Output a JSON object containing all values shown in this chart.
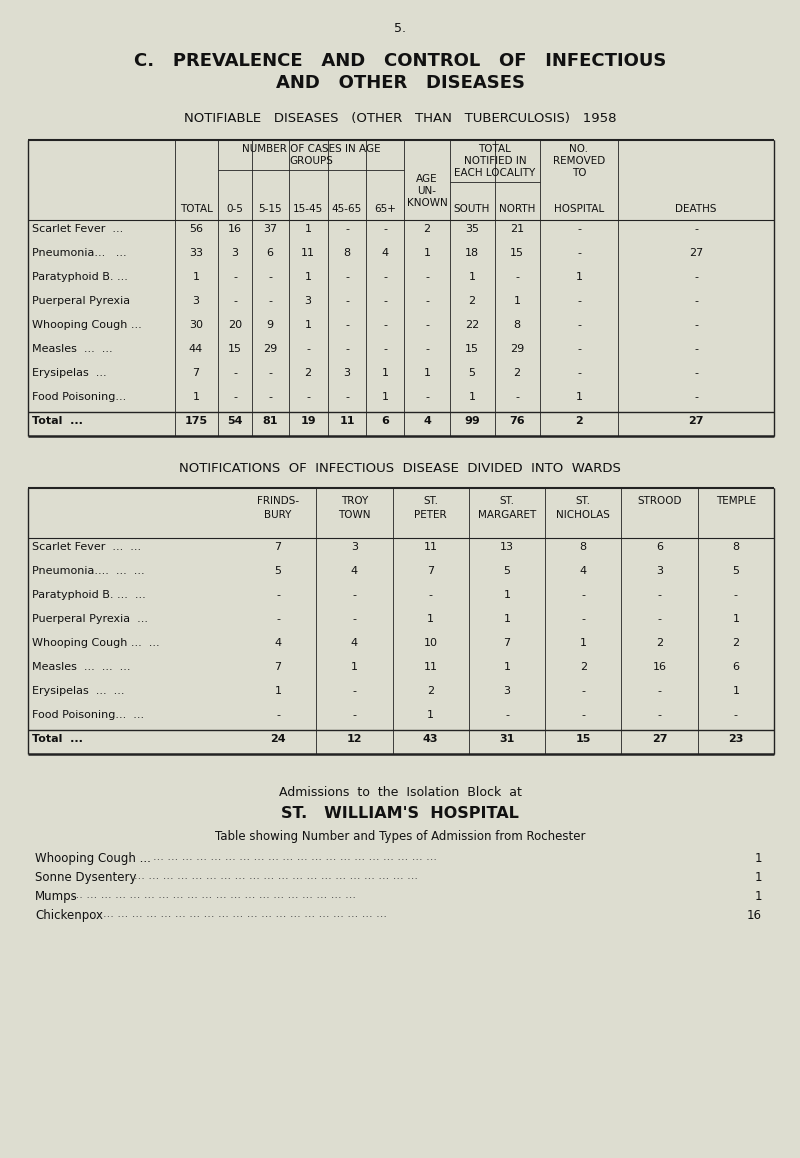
{
  "bg_color": "#ddddd0",
  "page_number": "5.",
  "title1": "C.   PREVALENCE   AND   CONTROL   OF   INFECTIOUS",
  "title2": "AND   OTHER   DISEASES",
  "subtitle": "NOTIFIABLE   DISEASES   (OTHER   THAN   TUBERCULOSIS)   1958",
  "table1": {
    "rows": [
      {
        "name": "Scarlet Fever  ...",
        "vals": [
          "56",
          "16",
          "37",
          "1",
          "-",
          "-",
          "2",
          "35",
          "21",
          "-",
          "-"
        ]
      },
      {
        "name": "Pneumonia...   ...",
        "vals": [
          "33",
          "3",
          "6",
          "11",
          "8",
          "4",
          "1",
          "18",
          "15",
          "-",
          "27"
        ]
      },
      {
        "name": "Paratyphoid B. ...",
        "vals": [
          "1",
          "-",
          "-",
          "1",
          "-",
          "-",
          "-",
          "1",
          "-",
          "1",
          "-"
        ]
      },
      {
        "name": "Puerperal Pyrexia",
        "vals": [
          "3",
          "-",
          "-",
          "3",
          "-",
          "-",
          "-",
          "2",
          "1",
          "-",
          "-"
        ]
      },
      {
        "name": "Whooping Cough ...",
        "vals": [
          "30",
          "20",
          "9",
          "1",
          "-",
          "-",
          "-",
          "22",
          "8",
          "-",
          "-"
        ]
      },
      {
        "name": "Measles  ...  ...",
        "vals": [
          "44",
          "15",
          "29",
          "-",
          "-",
          "-",
          "-",
          "15",
          "29",
          "-",
          "-"
        ]
      },
      {
        "name": "Erysipelas  ...",
        "vals": [
          "7",
          "-",
          "-",
          "2",
          "3",
          "1",
          "1",
          "5",
          "2",
          "-",
          "-"
        ]
      },
      {
        "name": "Food Poisoning...",
        "vals": [
          "1",
          "-",
          "-",
          "-",
          "-",
          "1",
          "-",
          "1",
          "-",
          "1",
          "-"
        ]
      }
    ],
    "total_row": [
      "Total  ...",
      "175",
      "54",
      "81",
      "19",
      "11",
      "6",
      "4",
      "99",
      "76",
      "2",
      "27"
    ]
  },
  "table2": {
    "rows": [
      {
        "name": "Scarlet Fever  ...  ...",
        "vals": [
          "7",
          "3",
          "11",
          "13",
          "8",
          "6",
          "8"
        ]
      },
      {
        "name": "Pneumonia....  ...  ...",
        "vals": [
          "5",
          "4",
          "7",
          "5",
          "4",
          "3",
          "5"
        ]
      },
      {
        "name": "Paratyphoid B. ...  ...",
        "vals": [
          "-",
          "-",
          "-",
          "1",
          "-",
          "-",
          "-"
        ]
      },
      {
        "name": "Puerperal Pyrexia  ...",
        "vals": [
          "-",
          "-",
          "1",
          "1",
          "-",
          "-",
          "1"
        ]
      },
      {
        "name": "Whooping Cough ...  ...",
        "vals": [
          "4",
          "4",
          "10",
          "7",
          "1",
          "2",
          "2"
        ]
      },
      {
        "name": "Measles  ...  ...  ...",
        "vals": [
          "7",
          "1",
          "11",
          "1",
          "2",
          "16",
          "6"
        ]
      },
      {
        "name": "Erysipelas  ...  ...",
        "vals": [
          "1",
          "-",
          "2",
          "3",
          "-",
          "-",
          "1"
        ]
      },
      {
        "name": "Food Poisoning...  ...",
        "vals": [
          "-",
          "-",
          "1",
          "-",
          "-",
          "-",
          "-"
        ]
      }
    ],
    "total_row": [
      "Total  ...",
      "24",
      "12",
      "43",
      "31",
      "15",
      "27",
      "23"
    ]
  },
  "adm_rows": [
    {
      "name": "Whooping Cough ...",
      "val": "1"
    },
    {
      "name": "Sonne Dysentery",
      "val": "1"
    },
    {
      "name": "Mumps",
      "val": "1"
    },
    {
      "name": "Chickenpox",
      "val": "16"
    }
  ]
}
